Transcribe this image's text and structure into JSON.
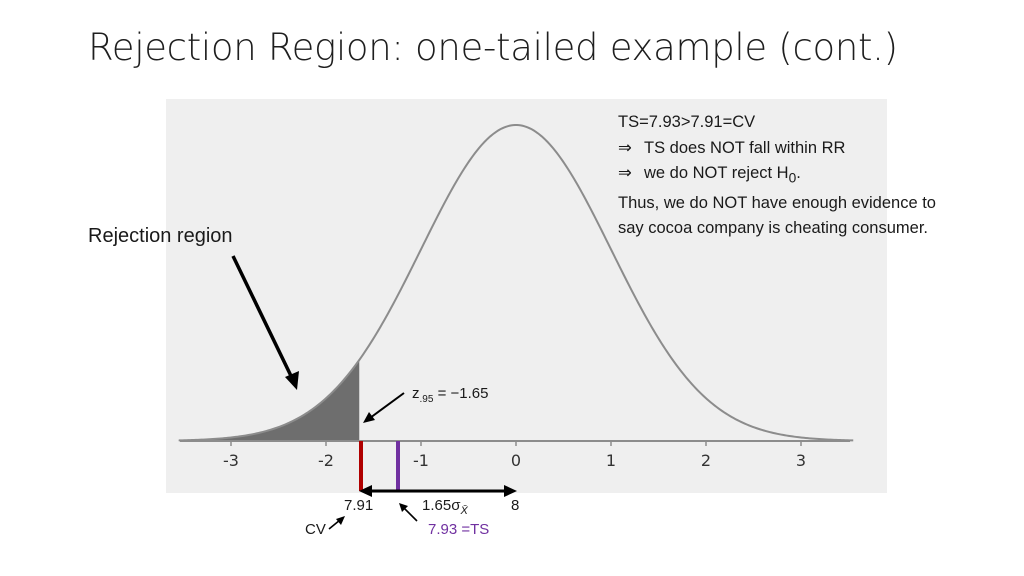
{
  "title": "Rejection Region: one-tailed example (cont.)",
  "notes": {
    "line1": "TS=7.93>7.91=CV",
    "line2_symbol": "⇒",
    "line2": "TS does NOT fall within RR",
    "line3_symbol": "⇒",
    "line3": "we do NOT reject H",
    "line3_sub": "0",
    "line3_end": ".",
    "line4": "Thus, we do NOT have enough evidence to",
    "line5": "say cocoa company is cheating consumer."
  },
  "rejection_region_label": "Rejection region",
  "z_label": {
    "z": "z",
    "sub": ".95",
    "rest": " = −1.65"
  },
  "axis": {
    "ticks": [
      "-3",
      "-2",
      "-1",
      "0",
      "1",
      "2",
      "3"
    ]
  },
  "critical_value": {
    "value": "7.91",
    "label": "CV"
  },
  "test_statistic": {
    "label": "7.93 =TS"
  },
  "distance_label": "1.65σ",
  "distance_sub": "X̄",
  "mean_value": "8",
  "colors": {
    "shaded": "#6e6e6e",
    "curve": "#8c8c8c",
    "cv_line": "#b00000",
    "ts_line": "#7030a0",
    "panel": "#efefef"
  }
}
